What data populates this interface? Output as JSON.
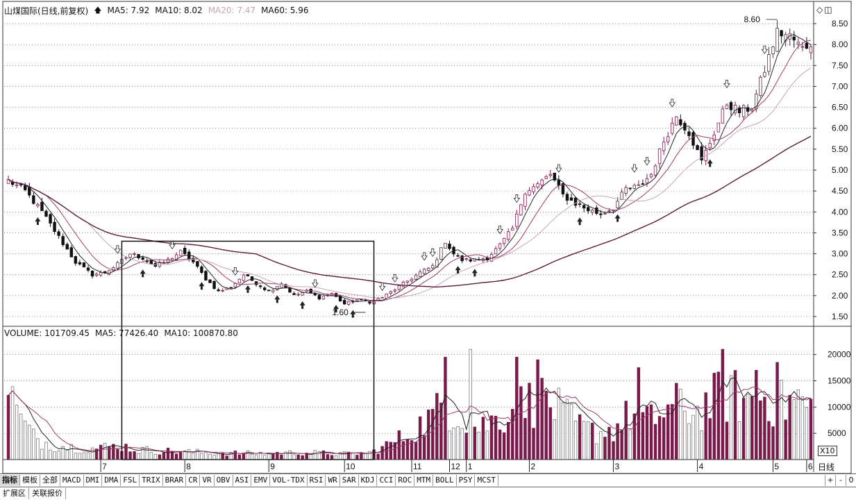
{
  "header": {
    "stock": "山煤国际(日线,前复权)",
    "ma5": "MA5: 7.92",
    "ma10": "MA10: 8.02",
    "ma20": "MA20: 7.47",
    "ma60": "MA60: 5.96"
  },
  "volume_header": {
    "volume": "VOLUME: 101709.45",
    "ma5": "MA5: 77426.40",
    "ma10": "MA10: 100870.80"
  },
  "colors": {
    "up": "#7a1a4a",
    "down": "#111111",
    "ma5": "#222222",
    "ma10": "#9c3b6b",
    "ma20": "#c7a4b5",
    "ma60": "#5a1a3a",
    "grid": "#444444"
  },
  "right_icons": [
    "diamond-icon",
    "window-icon"
  ],
  "chart_data": [
    {
      "type": "candlestick",
      "ylim": [
        1.3,
        8.7
      ],
      "yticks": [
        "8.50",
        "8.00",
        "7.50",
        "7.00",
        "6.50",
        "6.00",
        "5.50",
        "5.00",
        "4.50",
        "4.00",
        "3.50",
        "3.00",
        "2.50",
        "2.00",
        "1.50"
      ],
      "x_month_labels": [
        "7",
        "8",
        "9",
        "10",
        "11",
        "12",
        "1",
        "2",
        "3",
        "4",
        "5",
        "6"
      ],
      "close_anchors": [
        [
          0,
          4.75
        ],
        [
          4,
          4.5
        ],
        [
          8,
          4.0
        ],
        [
          12,
          3.4
        ],
        [
          16,
          2.8
        ],
        [
          20,
          2.5
        ],
        [
          23,
          2.55
        ],
        [
          26,
          2.75
        ],
        [
          29,
          3.0
        ],
        [
          32,
          2.9
        ],
        [
          35,
          2.7
        ],
        [
          38,
          2.85
        ],
        [
          41,
          3.05
        ],
        [
          44,
          2.8
        ],
        [
          47,
          2.4
        ],
        [
          50,
          2.1
        ],
        [
          53,
          2.2
        ],
        [
          56,
          2.5
        ],
        [
          59,
          2.3
        ],
        [
          62,
          2.1
        ],
        [
          65,
          2.3
        ],
        [
          68,
          2.0
        ],
        [
          71,
          2.1
        ],
        [
          74,
          1.95
        ],
        [
          77,
          2.05
        ],
        [
          80,
          1.8
        ],
        [
          83,
          1.9
        ],
        [
          86,
          1.85
        ],
        [
          89,
          1.95
        ],
        [
          92,
          2.15
        ],
        [
          95,
          2.35
        ],
        [
          98,
          2.55
        ],
        [
          101,
          2.7
        ],
        [
          104,
          3.3
        ],
        [
          106,
          3.0
        ],
        [
          108,
          2.85
        ],
        [
          111,
          2.85
        ],
        [
          114,
          2.9
        ],
        [
          117,
          3.2
        ],
        [
          120,
          3.6
        ],
        [
          123,
          4.5
        ],
        [
          126,
          4.65
        ],
        [
          129,
          4.9
        ],
        [
          132,
          4.4
        ],
        [
          135,
          4.2
        ],
        [
          138,
          4.05
        ],
        [
          141,
          3.95
        ],
        [
          144,
          4.1
        ],
        [
          147,
          4.55
        ],
        [
          150,
          4.6
        ],
        [
          153,
          4.9
        ],
        [
          156,
          5.7
        ],
        [
          159,
          6.3
        ],
        [
          162,
          5.9
        ],
        [
          165,
          5.2
        ],
        [
          168,
          5.9
        ],
        [
          171,
          6.6
        ],
        [
          174,
          6.4
        ],
        [
          177,
          6.5
        ],
        [
          180,
          7.4
        ],
        [
          183,
          8.3
        ],
        [
          186,
          8.2
        ],
        [
          189,
          7.9
        ],
        [
          191,
          8.05
        ]
      ],
      "candle_count": 192,
      "annotations": [
        {
          "text": "8.60",
          "candle": 183,
          "price": 8.6
        },
        {
          "text": "1.60",
          "candle": 85,
          "price": 1.6
        }
      ],
      "highlight_box": {
        "from_candle": 27,
        "to_candle": 87,
        "price_top": 3.3,
        "price_bottom": 1.3
      },
      "buy_arrows": [
        7,
        32,
        46,
        57,
        64,
        70,
        78,
        82,
        107,
        111,
        136,
        145,
        167
      ],
      "sell_arrows": [
        26,
        39,
        54,
        73,
        89,
        92,
        99,
        101,
        117,
        121,
        131,
        149,
        152,
        158,
        171,
        180
      ]
    },
    {
      "type": "bar",
      "ylim": [
        0,
        23000
      ],
      "yticks": [
        "20000",
        "15000",
        "10000",
        "5000"
      ],
      "multiplier": "X10",
      "volume_anchors": [
        [
          0,
          18500
        ],
        [
          2,
          9000
        ],
        [
          6,
          4500
        ],
        [
          10,
          3000
        ],
        [
          15,
          2500
        ],
        [
          20,
          2200
        ],
        [
          27,
          2800
        ],
        [
          30,
          2000
        ],
        [
          40,
          1600
        ],
        [
          50,
          1300
        ],
        [
          60,
          1200
        ],
        [
          70,
          1400
        ],
        [
          80,
          1100
        ],
        [
          86,
          1300
        ],
        [
          90,
          2800
        ],
        [
          95,
          5000
        ],
        [
          100,
          8000
        ],
        [
          104,
          11000
        ],
        [
          108,
          9000
        ],
        [
          112,
          6500
        ],
        [
          116,
          8000
        ],
        [
          120,
          10000
        ],
        [
          124,
          11500
        ],
        [
          128,
          12000
        ],
        [
          132,
          9000
        ],
        [
          136,
          6500
        ],
        [
          140,
          5500
        ],
        [
          144,
          6000
        ],
        [
          148,
          9000
        ],
        [
          152,
          7500
        ],
        [
          156,
          9500
        ],
        [
          160,
          11000
        ],
        [
          164,
          9500
        ],
        [
          168,
          12000
        ],
        [
          172,
          13000
        ],
        [
          176,
          11500
        ],
        [
          180,
          12500
        ],
        [
          184,
          11000
        ],
        [
          188,
          12000
        ],
        [
          191,
          10000
        ]
      ],
      "peaks": [
        [
          104,
          19500
        ],
        [
          110,
          21000
        ],
        [
          121,
          19500
        ],
        [
          126,
          19000
        ],
        [
          150,
          17500
        ],
        [
          170,
          21000
        ],
        [
          178,
          17000
        ],
        [
          183,
          18500
        ]
      ],
      "bars": 192
    }
  ],
  "tabs": [
    "指标",
    "模板",
    "全部",
    "MACD",
    "DMI",
    "DMA",
    "FSL",
    "TRIX",
    "BRAR",
    "CR",
    "VR",
    "OBV",
    "ASI",
    "EMV",
    "VOL-TDX",
    "RSI",
    "WR",
    "SAR",
    "KDJ",
    "CCI",
    "ROC",
    "MTM",
    "BOLL",
    "PSY",
    "MCST"
  ],
  "tab_controls": [
    "+",
    "-",
    "0"
  ],
  "bottom_tabs": [
    "扩展区",
    "关联报价"
  ],
  "period_label": "日线"
}
